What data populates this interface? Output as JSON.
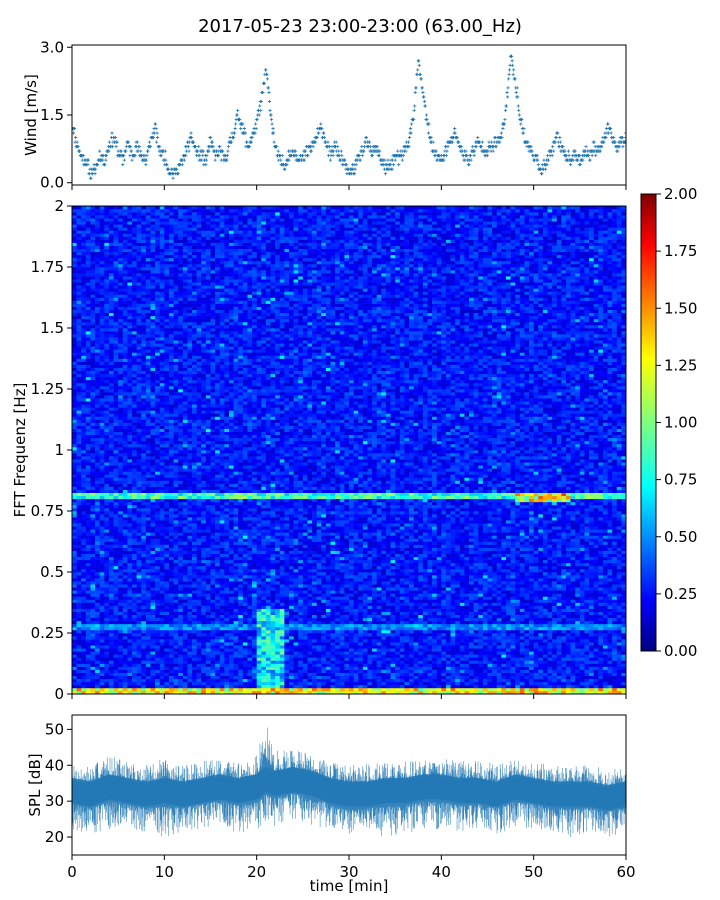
{
  "title": "2017-05-23 23:00-23:00 (63.00_Hz)",
  "colors": {
    "series": "#1f77b4",
    "colormap": "jet",
    "axis": "#000000",
    "background": "#ffffff"
  },
  "chart_data": [
    {
      "type": "scatter",
      "name": "wind-panel",
      "title": "",
      "xlabel": "",
      "ylabel": "Wind [m/s]",
      "xlim": [
        0,
        60
      ],
      "ylim": [
        -0.05,
        3.05
      ],
      "yticks": [
        0.0,
        1.5,
        3.0
      ],
      "ytick_labels": [
        "0.0",
        "1.5",
        "3.0"
      ],
      "xticks": [
        0,
        10,
        20,
        30,
        40,
        50,
        60
      ],
      "marker": "+",
      "x": [
        0.0,
        0.5,
        1.0,
        1.5,
        2.0,
        2.5,
        3.0,
        3.5,
        4.0,
        4.5,
        5.0,
        5.5,
        6.0,
        6.5,
        7.0,
        7.5,
        8.0,
        8.5,
        9.0,
        9.5,
        10.0,
        10.5,
        11.0,
        11.5,
        12.0,
        12.5,
        13.0,
        13.5,
        14.0,
        14.5,
        15.0,
        15.5,
        16.0,
        16.5,
        17.0,
        17.5,
        18.0,
        18.5,
        19.0,
        19.5,
        20.0,
        20.5,
        21.0,
        21.5,
        22.0,
        22.5,
        23.0,
        23.5,
        24.0,
        24.5,
        25.0,
        25.5,
        26.0,
        26.5,
        27.0,
        27.5,
        28.0,
        28.5,
        29.0,
        29.5,
        30.0,
        30.5,
        31.0,
        31.5,
        32.0,
        32.5,
        33.0,
        33.5,
        34.0,
        34.5,
        35.0,
        35.5,
        36.0,
        36.5,
        37.0,
        37.5,
        38.0,
        38.5,
        39.0,
        39.5,
        40.0,
        40.5,
        41.0,
        41.5,
        42.0,
        42.5,
        43.0,
        43.5,
        44.0,
        44.5,
        45.0,
        45.5,
        46.0,
        46.5,
        47.0,
        47.5,
        48.0,
        48.5,
        49.0,
        49.5,
        50.0,
        50.5,
        51.0,
        51.5,
        52.0,
        52.5,
        53.0,
        53.5,
        54.0,
        54.5,
        55.0,
        55.5,
        56.0,
        56.5,
        57.0,
        57.5,
        58.0,
        58.5,
        59.0,
        59.5,
        60.0
      ],
      "y": [
        1.3,
        0.9,
        0.6,
        0.5,
        0.2,
        0.3,
        0.6,
        0.5,
        0.8,
        1.0,
        0.7,
        0.5,
        0.9,
        0.6,
        0.8,
        0.6,
        0.5,
        0.9,
        1.2,
        0.7,
        0.6,
        0.3,
        0.2,
        0.3,
        0.5,
        0.8,
        1.0,
        0.7,
        0.6,
        0.5,
        0.9,
        0.6,
        0.7,
        0.5,
        0.8,
        1.1,
        1.5,
        1.2,
        0.8,
        1.0,
        1.3,
        1.8,
        2.5,
        1.6,
        0.8,
        0.5,
        0.4,
        0.6,
        0.7,
        0.6,
        0.5,
        0.7,
        0.8,
        1.0,
        1.2,
        0.9,
        0.6,
        0.8,
        0.6,
        0.4,
        0.2,
        0.3,
        0.5,
        0.7,
        0.9,
        0.6,
        0.8,
        0.5,
        0.3,
        0.4,
        0.6,
        0.5,
        0.7,
        0.9,
        1.5,
        2.7,
        2.0,
        1.3,
        0.8,
        0.6,
        0.5,
        0.7,
        0.9,
        1.1,
        0.8,
        0.6,
        0.5,
        0.7,
        0.9,
        0.8,
        0.7,
        0.8,
        0.9,
        1.0,
        1.6,
        2.8,
        2.3,
        1.5,
        1.0,
        0.8,
        0.6,
        0.4,
        0.3,
        0.5,
        0.7,
        1.0,
        0.8,
        0.6,
        0.5,
        0.6,
        0.5,
        0.7,
        0.6,
        0.8,
        0.7,
        0.9,
        1.2,
        1.0,
        0.8,
        0.9,
        1.0
      ],
      "y_extra_scatter_note": "",
      "peaks": []
    },
    {
      "type": "heatmap",
      "name": "spectrogram-panel",
      "title": "",
      "xlabel": "",
      "ylabel": "FFT Frequenz [Hz]",
      "xlim": [
        0,
        60
      ],
      "ylim": [
        0,
        2
      ],
      "yticks": [
        0,
        0.25,
        0.5,
        0.75,
        1,
        1.25,
        1.5,
        1.75,
        2
      ],
      "ytick_labels": [
        "0",
        "0.25",
        "0.5",
        "0.75",
        "1",
        "1.25",
        "1.5",
        "1.75",
        "2"
      ],
      "xticks": [
        0,
        10,
        20,
        30,
        40,
        50,
        60
      ],
      "colorbar": {
        "range": [
          0.0,
          2.0
        ],
        "ticks": [
          0.0,
          0.25,
          0.5,
          0.75,
          1.0,
          1.25,
          1.5,
          1.75,
          2.0
        ],
        "tick_labels": [
          "0.00",
          "0.25",
          "0.50",
          "0.75",
          "1.00",
          "1.25",
          "1.50",
          "1.75",
          "2.00"
        ]
      },
      "time_bins": 120,
      "freq_bins": 160,
      "base_level": 0.3,
      "features": [
        {
          "kind": "line",
          "freq": 0.81,
          "level": 0.9
        },
        {
          "kind": "line",
          "freq": 0.27,
          "level": 0.55
        },
        {
          "kind": "line",
          "freq": 0.01,
          "level": 1.3
        },
        {
          "kind": "patch",
          "t_from": 20,
          "t_to": 23,
          "f_from": 0.0,
          "f_to": 0.35,
          "level": 0.9
        },
        {
          "kind": "patch",
          "t_from": 48,
          "t_to": 54,
          "f_from": 0.79,
          "f_to": 0.83,
          "level": 1.5
        }
      ]
    },
    {
      "type": "area",
      "name": "spl-panel",
      "title": "",
      "xlabel": "time [min]",
      "ylabel": "SPL [dB]",
      "xlim": [
        0,
        60
      ],
      "ylim": [
        15,
        54
      ],
      "yticks": [
        20,
        30,
        40,
        50
      ],
      "ytick_labels": [
        "20",
        "30",
        "40",
        "50"
      ],
      "xticks": [
        0,
        10,
        20,
        30,
        40,
        50,
        60
      ],
      "xtick_labels": [
        "0",
        "10",
        "20",
        "30",
        "40",
        "50",
        "60"
      ],
      "x": [
        0,
        2,
        4,
        6,
        8,
        10,
        12,
        14,
        16,
        18,
        20,
        21,
        22,
        24,
        26,
        28,
        30,
        32,
        34,
        36,
        38,
        40,
        42,
        44,
        46,
        48,
        50,
        52,
        54,
        56,
        58,
        60
      ],
      "mean": [
        33,
        32,
        34,
        33,
        32,
        33,
        32,
        33,
        34,
        33,
        34,
        36,
        35,
        36,
        35,
        33,
        32,
        32,
        33,
        33,
        34,
        34,
        33,
        33,
        32,
        34,
        33,
        32,
        32,
        32,
        31,
        32
      ],
      "upper": [
        40,
        40,
        43,
        41,
        40,
        42,
        40,
        41,
        42,
        41,
        43,
        52,
        44,
        45,
        43,
        41,
        40,
        41,
        41,
        41,
        42,
        42,
        41,
        42,
        40,
        42,
        41,
        40,
        40,
        40,
        39,
        40
      ],
      "lower": [
        22,
        21,
        22,
        22,
        21,
        20,
        21,
        22,
        23,
        21,
        22,
        24,
        23,
        25,
        23,
        22,
        19,
        21,
        20,
        21,
        22,
        22,
        21,
        22,
        21,
        22,
        22,
        21,
        20,
        21,
        20,
        21
      ]
    }
  ]
}
